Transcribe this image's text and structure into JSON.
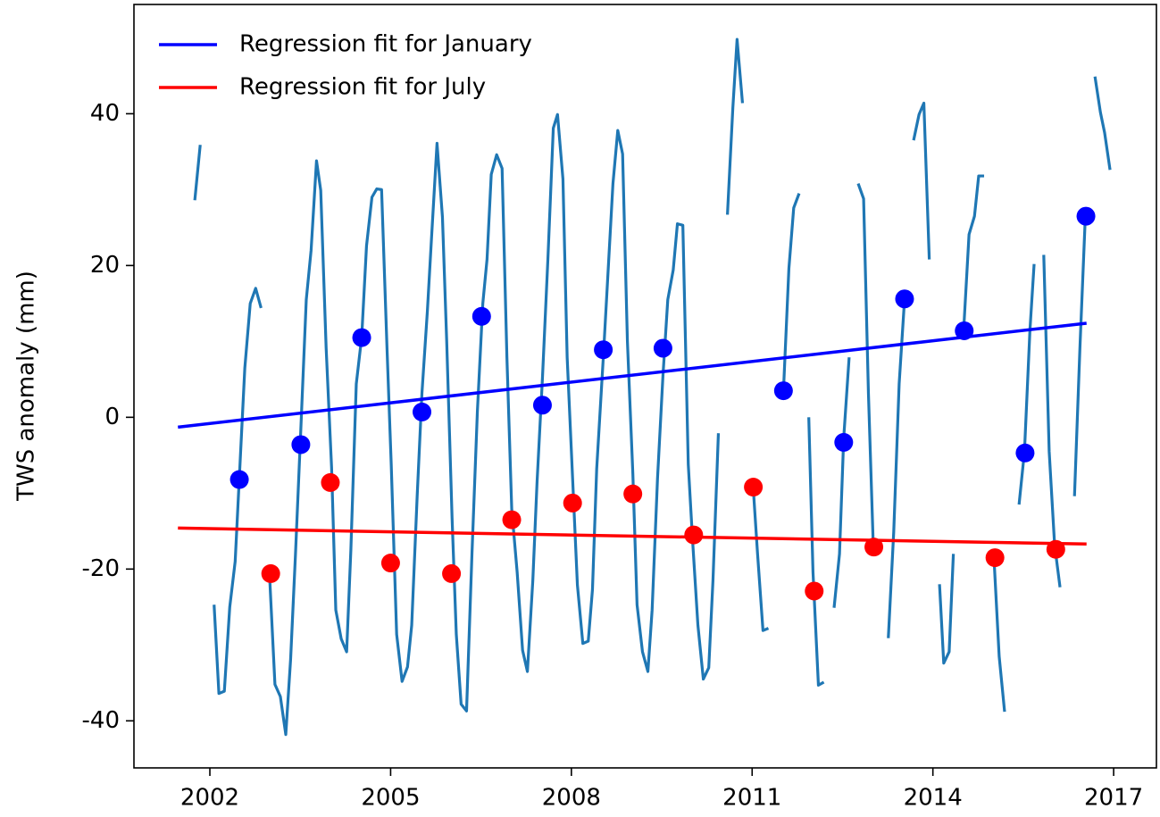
{
  "chart_data": {
    "type": "line",
    "ylabel": "TWS anomaly (mm)",
    "xlim": [
      2000.74,
      2017.71
    ],
    "ylim": [
      -46.2,
      54.4
    ],
    "xticks": [
      2002,
      2005,
      2008,
      2011,
      2014,
      2017
    ],
    "yticks": [
      -40,
      -20,
      0,
      20,
      40
    ],
    "grid": false,
    "legend": "upper left",
    "series": [
      {
        "type": "line",
        "color": "#1f77b4",
        "x": [
          2001.75,
          2001.84,
          2001.92,
          2002.07,
          2002.15,
          2002.24,
          2002.33,
          2002.42,
          2002.49,
          2002.58,
          2002.67,
          2002.76,
          2002.85,
          2002.92,
          2002.99,
          2003.08,
          2003.17,
          2003.26,
          2003.34,
          2003.42,
          2003.51,
          2003.6,
          2003.68,
          2003.77,
          2003.84,
          2003.93,
          2004.02,
          2004.09,
          2004.18,
          2004.27,
          2004.34,
          2004.43,
          2004.52,
          2004.6,
          2004.69,
          2004.77,
          2004.85,
          2004.94,
          2005.01,
          2005.1,
          2005.19,
          2005.28,
          2005.35,
          2005.44,
          2005.52,
          2005.61,
          2005.68,
          2005.77,
          2005.86,
          2005.93,
          2006.02,
          2006.09,
          2006.17,
          2006.26,
          2006.35,
          2006.44,
          2006.53,
          2006.6,
          2006.67,
          2006.76,
          2006.85,
          2006.93,
          2007.01,
          2007.1,
          2007.19,
          2007.27,
          2007.36,
          2007.43,
          2007.52,
          2007.61,
          2007.7,
          2007.77,
          2007.86,
          2007.93,
          2008.02,
          2008.1,
          2008.19,
          2008.28,
          2008.35,
          2008.42,
          2008.53,
          2008.6,
          2008.69,
          2008.77,
          2008.85,
          2008.93,
          2009.02,
          2009.09,
          2009.18,
          2009.27,
          2009.34,
          2009.43,
          2009.52,
          2009.6,
          2009.69,
          2009.76,
          2009.85,
          2009.94,
          2010.01,
          2010.1,
          2010.19,
          2010.28,
          2010.35,
          2010.44,
          2010.52,
          2010.59,
          2010.68,
          2010.75,
          2010.84,
          2010.92,
          2011.02,
          2011.09,
          2011.18,
          2011.27,
          2011.35,
          2011.52,
          2011.61,
          2011.69,
          2011.78,
          2011.85,
          2011.94,
          2012.01,
          2012.1,
          2012.19,
          2012.27,
          2012.36,
          2012.45,
          2012.52,
          2012.61,
          2012.68,
          2012.76,
          2012.85,
          2012.93,
          2013.01,
          2013.17,
          2013.26,
          2013.35,
          2013.44,
          2013.53,
          2013.6,
          2013.68,
          2013.77,
          2013.85,
          2013.94,
          2014.02,
          2014.11,
          2014.18,
          2014.27,
          2014.34,
          2014.43,
          2014.51,
          2014.6,
          2014.69,
          2014.76,
          2014.85,
          2014.93,
          2015.01,
          2015.1,
          2015.19,
          2015.3,
          2015.43,
          2015.52,
          2015.61,
          2015.68,
          2015.76,
          2015.84,
          2015.93,
          2016.02,
          2016.11,
          2016.18,
          2016.35,
          2016.44,
          2016.53,
          2016.61,
          2016.69,
          2016.78,
          2016.85,
          2016.94
        ],
        "values": [
          28.6,
          35.9,
          null,
          -24.7,
          -36.4,
          -36.1,
          -25,
          -19,
          -7.8,
          6.5,
          15,
          17,
          14.4,
          null,
          -20.7,
          -35.2,
          -36.8,
          -41.8,
          -31.9,
          -18.2,
          -1.5,
          15.5,
          22,
          33.8,
          29.9,
          9.1,
          -6.6,
          -25.4,
          -29.2,
          -30.9,
          -17.5,
          4.4,
          10.6,
          22.6,
          29,
          30.1,
          30,
          9.1,
          -6.2,
          -28.6,
          -34.8,
          -32.9,
          -27.4,
          -10.5,
          3.2,
          14,
          23.8,
          36.1,
          26.4,
          10.2,
          -13.3,
          -28.6,
          -37.8,
          -38.7,
          -18,
          0.8,
          15,
          20.8,
          32,
          34.6,
          32.8,
          7.9,
          -12.1,
          -20.4,
          -30.7,
          -33.5,
          -21.5,
          -8.6,
          5.2,
          20.8,
          38.1,
          39.9,
          31.4,
          7.9,
          -8,
          -22.1,
          -29.8,
          -29.5,
          -22.7,
          -6.8,
          7.9,
          17.9,
          30.8,
          37.8,
          34.7,
          10,
          -7.4,
          -24.7,
          -30.9,
          -33.5,
          -25.4,
          -8,
          5.5,
          15.5,
          19.4,
          25.5,
          25.3,
          -6.2,
          -16,
          -27.4,
          -34.5,
          -33,
          -21.5,
          -2.1,
          null,
          26.7,
          40.8,
          49.8,
          41.4,
          null,
          -9.5,
          -18,
          -28.1,
          -27.8,
          null,
          3.5,
          19.6,
          27.6,
          29.5,
          null,
          0,
          -20.4,
          -35.3,
          -34.9,
          null,
          -25.1,
          -18,
          -2.7,
          7.9,
          null,
          30.8,
          28.8,
          3.2,
          -16.8,
          null,
          -29.1,
          -15.1,
          4.4,
          15.6,
          null,
          36.5,
          39.9,
          41.4,
          20.8,
          null,
          -22,
          -32.4,
          -30.9,
          -18,
          null,
          11.4,
          24.1,
          26.5,
          31.8,
          31.8,
          null,
          -18,
          -31.5,
          -38.8,
          null,
          -11.5,
          -4.5,
          11.4,
          20.2,
          null,
          21.4,
          -4.5,
          -16.8,
          -22.4,
          null,
          -10.4,
          9.1,
          26.5,
          null,
          44.9,
          40.2,
          37.5,
          32.6
        ]
      },
      {
        "type": "scatter",
        "color": "#0000ff",
        "x": [
          2002.49,
          2003.51,
          2004.52,
          2005.52,
          2006.51,
          2007.52,
          2008.53,
          2009.52,
          2011.52,
          2012.52,
          2013.53,
          2014.52,
          2015.53,
          2016.54
        ],
        "values": [
          -8.2,
          -3.6,
          10.5,
          0.7,
          13.3,
          1.6,
          8.9,
          9.1,
          3.5,
          -3.3,
          15.6,
          11.4,
          -4.7,
          26.5
        ]
      },
      {
        "type": "scatter",
        "color": "#ff0000",
        "x": [
          2003.01,
          2004.0,
          2005.0,
          2006.01,
          2007.01,
          2008.02,
          2009.02,
          2010.03,
          2011.02,
          2012.03,
          2013.02,
          2015.03,
          2016.04
        ],
        "values": [
          -20.6,
          -8.6,
          -19.2,
          -20.6,
          -13.5,
          -11.3,
          -10.1,
          -15.5,
          -9.2,
          -22.9,
          -17.1,
          -18.5,
          -17.4
        ]
      },
      {
        "type": "line",
        "name": "Regression fit for January",
        "color": "#0000ff",
        "x": [
          2001.47,
          2016.55
        ],
        "values": [
          -1.3,
          12.4
        ]
      },
      {
        "type": "line",
        "name": "Regression fit for July",
        "color": "#ff0000",
        "x": [
          2001.47,
          2016.55
        ],
        "values": [
          -14.6,
          -16.7
        ]
      }
    ]
  }
}
